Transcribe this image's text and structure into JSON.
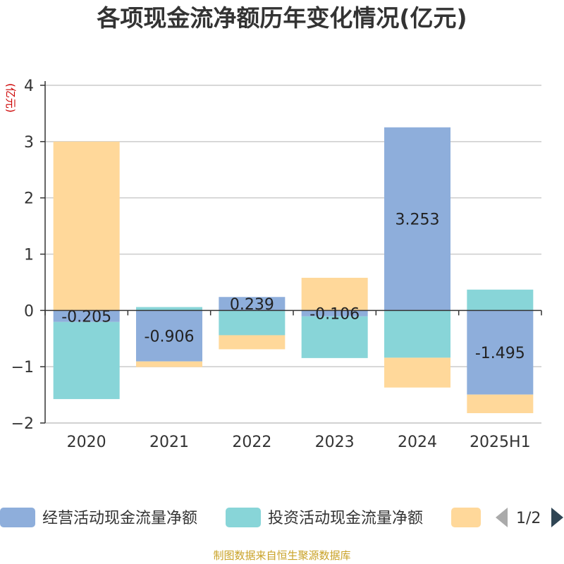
{
  "chart_data": {
    "type": "bar",
    "stacked": true,
    "title": "各项现金流净额历年变化情况(亿元)",
    "ylabel": "(亿元)",
    "categories": [
      "2020",
      "2021",
      "2022",
      "2023",
      "2024",
      "2025H1"
    ],
    "ylim": [
      -2,
      4
    ],
    "yticks": [
      -2,
      -1,
      0,
      1,
      2,
      3,
      4
    ],
    "grid": true,
    "series": [
      {
        "name": "经营活动现金流量净额",
        "color": "#8EAEDB",
        "values": [
          -0.205,
          -0.906,
          0.239,
          -0.106,
          3.253,
          -1.495
        ],
        "show_labels": true
      },
      {
        "name": "投资活动现金流量净额",
        "color": "#88D5D8",
        "values": [
          -1.37,
          0.06,
          -0.44,
          -0.74,
          -0.84,
          0.37
        ],
        "show_labels": false
      },
      {
        "name": "",
        "color": "#FFD89A",
        "values": [
          3.0,
          -0.1,
          -0.25,
          0.58,
          -0.53,
          -0.33
        ],
        "show_labels": false
      }
    ],
    "legend": {
      "position": "bottom",
      "page": "1/2"
    }
  },
  "source_note": "制图数据来自恒生聚源数据库",
  "colors": {
    "axis": "#333333",
    "grid": "#cccccc",
    "ylabel": "#cc0000",
    "nav_prev": "#aaaaaa",
    "nav_next": "#2f4554"
  }
}
